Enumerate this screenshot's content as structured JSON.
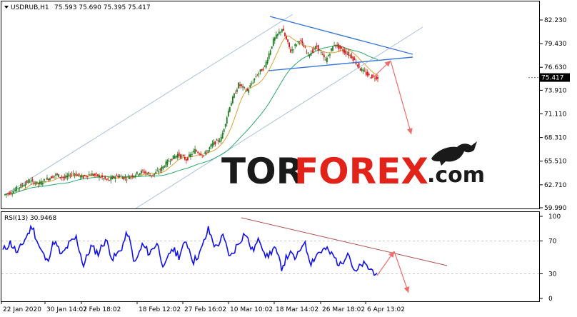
{
  "header": {
    "symbol_label": "USDRUB,H1",
    "ohlc": "75.593 75.690 75.395 75.417"
  },
  "rsi_header": "RSI(13) 30.9468",
  "watermark": {
    "part1": "TOR",
    "part2": "FOREX",
    "part3": ".com",
    "color_dark": "#1a1a1a",
    "color_red": "#e2231a"
  },
  "colors": {
    "bull": "#1f7a1f",
    "bear": "#d11a1a",
    "ma_fast": "#e0a030",
    "ma_slow": "#2aa86a",
    "channel": "#a9bfd6",
    "triangle": "#3a78d8",
    "rsi_line": "#1010ee",
    "rsi_trend": "#b05050",
    "arrow": "#f06a6a"
  },
  "chart_data": [
    {
      "type": "line",
      "title": "USDRUB,H1",
      "price_ticks": [
        "82.230",
        "79.430",
        "76.630",
        "73.910",
        "71.110",
        "68.310",
        "65.510",
        "62.710",
        "59.990"
      ],
      "current_price_label": "75.417",
      "ylim": [
        59.99,
        82.23
      ],
      "x_tick_labels": [
        "22 Jan 2020",
        "30 Jan 14:02",
        "7 Feb 18:02",
        "18 Feb 12:02",
        "27 Feb 16:02",
        "10 Mar 10:02",
        "18 Mar 14:02",
        "26 Mar 18:02",
        "6 Apr 13:02"
      ],
      "series": [
        {
          "values": [
            61.5,
            61.9,
            62.6,
            63.2,
            62.8,
            63.4,
            63.9,
            63.5,
            64.1,
            63.6,
            64.0,
            63.7,
            63.2,
            63.8,
            63.5,
            63.9,
            64.3,
            63.8,
            64.5,
            65.6,
            66.3,
            65.7,
            66.8,
            66.2,
            67.5,
            68.2,
            72.1,
            74.6,
            73.8,
            75.6,
            76.7,
            79.8,
            81.2,
            78.5,
            79.9,
            78.1,
            79.1,
            77.4,
            79.4,
            78.6,
            77.9,
            76.4,
            75.6,
            75.4
          ]
        }
      ]
    },
    {
      "type": "line",
      "title": "RSI(13) 30.9468",
      "y_ticks": [
        "100",
        "70",
        "30",
        "0"
      ],
      "ylim": [
        0,
        100
      ],
      "series": [
        {
          "values": [
            58,
            68,
            55,
            72,
            88,
            62,
            45,
            70,
            52,
            66,
            74,
            40,
            63,
            55,
            72,
            48,
            58,
            80,
            42,
            65,
            55,
            68,
            36,
            61,
            52,
            70,
            45,
            58,
            84,
            62,
            75,
            50,
            66,
            80,
            58,
            72,
            50,
            62,
            38,
            55,
            48,
            70,
            44,
            56,
            60,
            52,
            40,
            58,
            30,
            42,
            36,
            31
          ]
        }
      ]
    }
  ]
}
